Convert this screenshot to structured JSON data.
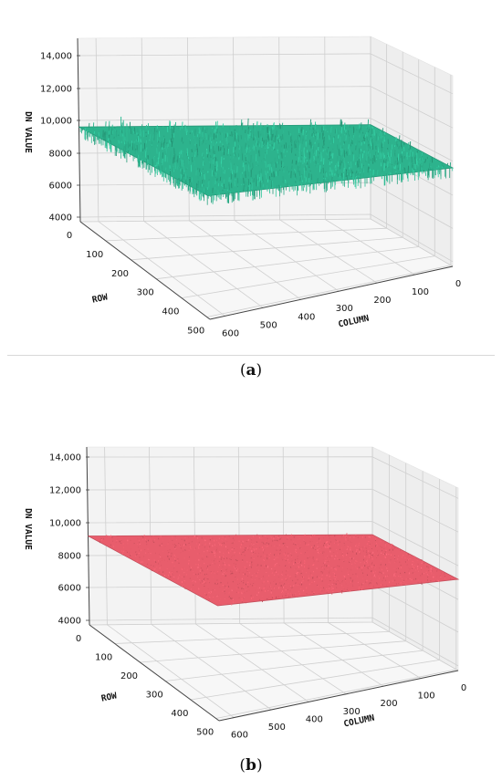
{
  "chart_data": [
    {
      "type": "surface3d",
      "panel_label": "a",
      "xlabel": "COLUMN",
      "ylabel": "ROW",
      "zlabel": "DN VALUE",
      "x_ticks": [
        "600",
        "500",
        "400",
        "300",
        "200",
        "100",
        "0"
      ],
      "y_ticks": [
        "0",
        "100",
        "200",
        "300",
        "400",
        "500"
      ],
      "z_ticks": [
        "4000",
        "6000",
        "8000",
        "10,000",
        "12,000",
        "14,000"
      ],
      "xlim": [
        0,
        640
      ],
      "ylim": [
        0,
        512
      ],
      "zlim": [
        3000,
        15000
      ],
      "surface_level": 9200,
      "noise_amplitude": 500,
      "color": "#2db38d",
      "grid": true
    },
    {
      "type": "surface3d",
      "panel_label": "b",
      "xlabel": "COLUMN",
      "ylabel": "ROW",
      "zlabel": "DN VALUE",
      "x_ticks": [
        "600",
        "500",
        "400",
        "300",
        "200",
        "100",
        "0"
      ],
      "y_ticks": [
        "0",
        "100",
        "200",
        "300",
        "400",
        "500"
      ],
      "z_ticks": [
        "4000",
        "6000",
        "8000",
        "10,000",
        "12,000",
        "14,000"
      ],
      "xlim": [
        0,
        640
      ],
      "ylim": [
        0,
        512
      ],
      "zlim": [
        3000,
        15000
      ],
      "surface_level": 9000,
      "noise_amplitude": 120,
      "color": "#e85d6c",
      "grid": true
    }
  ]
}
